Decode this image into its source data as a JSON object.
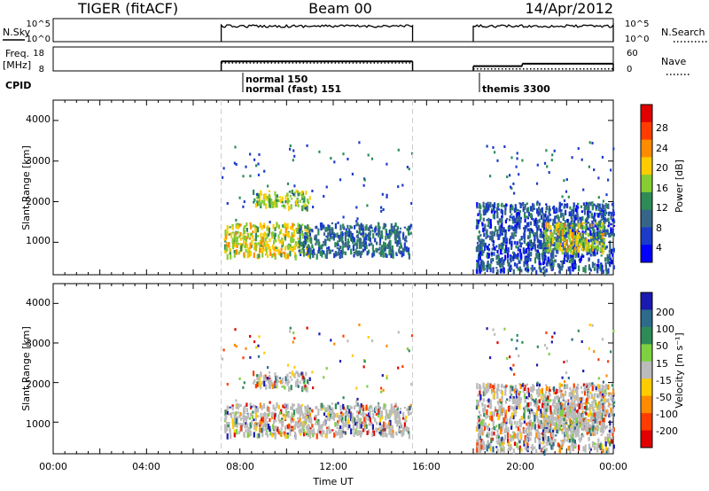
{
  "header": {
    "title": "TIGER (fitACF)",
    "beam": "Beam 00",
    "date": "14/Apr/2012"
  },
  "noise_panel": {
    "left_label": "N.Sky",
    "left_ticks": [
      "10^5",
      "10^0"
    ],
    "right_label": "N.Search",
    "right_ticks": [
      "10^5",
      "10^0"
    ]
  },
  "freq_panel": {
    "left_label_line1": "Freq.",
    "left_label_line2": "[MHz]",
    "left_ticks": [
      "18",
      "8"
    ],
    "right_label": "Nave",
    "right_ticks": [
      "60",
      "0"
    ]
  },
  "cpid": {
    "label": "CPID",
    "modes": [
      "normal 150",
      "normal (fast) 151",
      "themis 3300"
    ]
  },
  "power_panel": {
    "ylabel": "Slant Range [km]",
    "yticks": [
      "4000",
      "3000",
      "2000",
      "1000"
    ],
    "colorbar_label": "Power [dB]",
    "colorbar_ticks": [
      "28",
      "24",
      "20",
      "16",
      "12",
      "8",
      "4"
    ],
    "colorbar_colors": [
      "#e00000",
      "#ff3c00",
      "#ff8c00",
      "#ffcc00",
      "#88cc33",
      "#2e8b57",
      "#356688",
      "#1a3cc8",
      "#0000ff"
    ]
  },
  "velocity_panel": {
    "ylabel": "Slant Range [km]",
    "yticks": [
      "4000",
      "3000",
      "2000",
      "1000"
    ],
    "colorbar_label": "Velocity [m s⁻¹]",
    "colorbar_ticks": [
      "200",
      "100",
      "50",
      "15",
      "-15",
      "-50",
      "-100",
      "-200"
    ],
    "colorbar_colors": [
      "#1a1ab0",
      "#2e6a8a",
      "#2e8b57",
      "#7fd040",
      "#bbbbbb",
      "#ffcc00",
      "#ff8c00",
      "#ff3c00",
      "#e00000"
    ]
  },
  "xaxis": {
    "label": "Time UT",
    "ticks": [
      "00:00",
      "04:00",
      "08:00",
      "12:00",
      "16:00",
      "20:00",
      "00:00"
    ]
  },
  "chart_data": {
    "type": "heatmap",
    "title": "TIGER (fitACF)",
    "xlabel": "Time UT",
    "ylabel": "Slant Range [km]",
    "xlim_hours": [
      0,
      24
    ],
    "ylim_km": [
      200,
      4500
    ],
    "data_segments_hours": [
      [
        7.2,
        15.4
      ],
      [
        18.0,
        24.0
      ]
    ],
    "cpid_segments": [
      {
        "mode": "normal 150 / normal (fast) 151",
        "start_hour": 7.2,
        "end_hour": 15.4
      },
      {
        "mode": "themis 3300",
        "start_hour": 18.0,
        "end_hour": 24.0
      }
    ],
    "transmit_frequency_mhz": [
      {
        "start_hour": 7.2,
        "end_hour": 15.4,
        "value": 12
      },
      {
        "start_hour": 18.0,
        "end_hour": 20.1,
        "value": 10
      },
      {
        "start_hour": 20.1,
        "end_hour": 24.0,
        "value": 11
      }
    ],
    "nave": [
      {
        "start_hour": 7.2,
        "end_hour": 15.4,
        "value": 20
      },
      {
        "start_hour": 18.0,
        "end_hour": 24.0,
        "value": 5
      }
    ],
    "scatter_regions": [
      {
        "start_hour": 7.3,
        "end_hour": 11.0,
        "range_min_km": 700,
        "range_max_km": 1500,
        "typical_power_db": 18
      },
      {
        "start_hour": 8.5,
        "end_hour": 11.0,
        "range_min_km": 1900,
        "range_max_km": 2300,
        "typical_power_db": 16
      },
      {
        "start_hour": 10.5,
        "end_hour": 15.3,
        "range_min_km": 700,
        "range_max_km": 1500,
        "typical_power_db": 8
      },
      {
        "start_hour": 18.1,
        "end_hour": 24.0,
        "range_min_km": 300,
        "range_max_km": 2000,
        "typical_power_db": 6
      },
      {
        "start_hour": 21.0,
        "end_hour": 23.6,
        "range_min_km": 800,
        "range_max_km": 1500,
        "typical_power_db": 18
      }
    ]
  }
}
